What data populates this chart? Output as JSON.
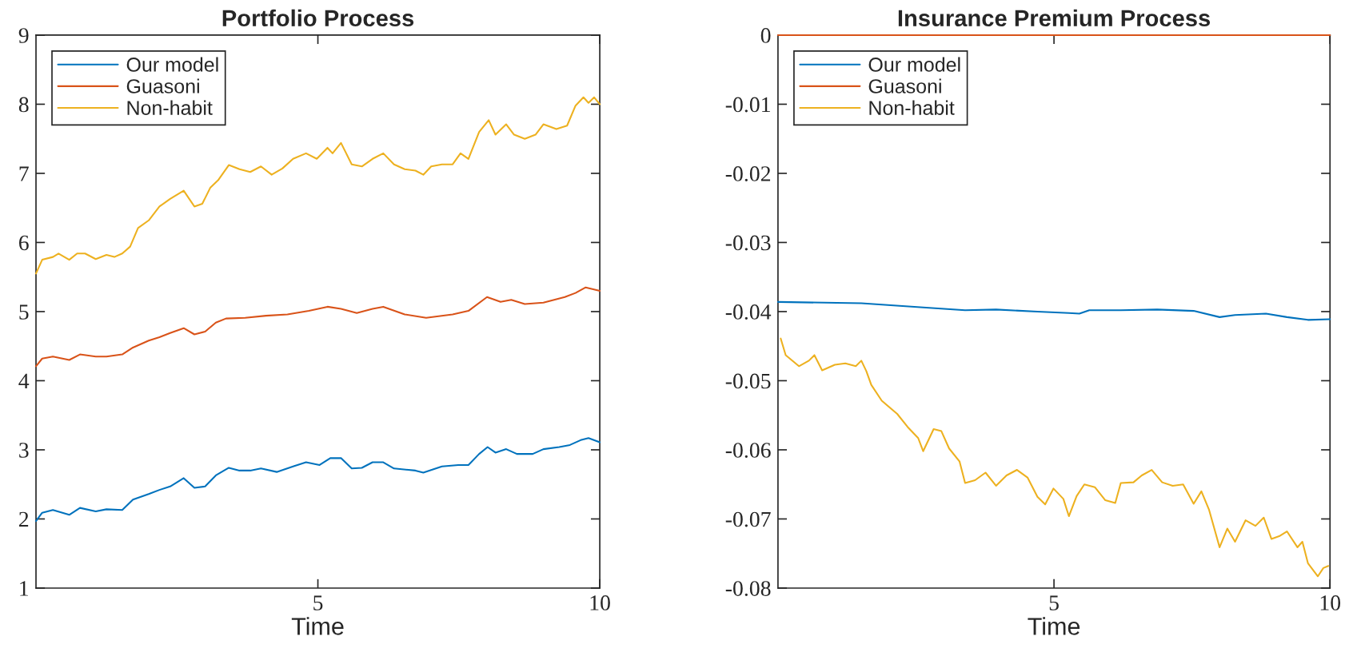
{
  "chart_data": [
    {
      "type": "line",
      "title": "Portfolio Process",
      "xlabel": "Time",
      "xlim": [
        0,
        10
      ],
      "xticks": [
        5,
        10
      ],
      "ylim": [
        1,
        9
      ],
      "yticks": [
        1,
        2,
        3,
        4,
        5,
        6,
        7,
        8,
        9
      ],
      "legend": "top left",
      "series": [
        {
          "name": "Our model",
          "color": "#0072bd",
          "x": [
            0,
            0.11,
            0.3,
            0.59,
            0.78,
            1.06,
            1.25,
            1.53,
            1.72,
            2.0,
            2.19,
            2.38,
            2.62,
            2.81,
            3.0,
            3.19,
            3.42,
            3.61,
            3.8,
            3.99,
            4.27,
            4.56,
            4.79,
            5.03,
            5.22,
            5.41,
            5.6,
            5.78,
            5.97,
            6.16,
            6.35,
            6.73,
            6.87,
            7.2,
            7.49,
            7.67,
            7.86,
            8.01,
            8.15,
            8.34,
            8.53,
            8.81,
            9.0,
            9.28,
            9.47,
            9.66,
            9.8,
            10
          ],
          "values": [
            1.97,
            2.09,
            2.13,
            2.06,
            2.16,
            2.11,
            2.14,
            2.13,
            2.28,
            2.36,
            2.42,
            2.47,
            2.59,
            2.45,
            2.47,
            2.63,
            2.74,
            2.7,
            2.7,
            2.73,
            2.68,
            2.76,
            2.82,
            2.78,
            2.88,
            2.88,
            2.73,
            2.74,
            2.82,
            2.82,
            2.73,
            2.7,
            2.67,
            2.76,
            2.78,
            2.78,
            2.94,
            3.04,
            2.96,
            3.01,
            2.94,
            2.94,
            3.01,
            3.04,
            3.07,
            3.14,
            3.17,
            3.11
          ]
        },
        {
          "name": "Guasoni",
          "color": "#d95319",
          "x": [
            0,
            0.11,
            0.3,
            0.59,
            0.78,
            1.06,
            1.25,
            1.53,
            1.72,
            2.0,
            2.19,
            2.38,
            2.62,
            2.81,
            3.0,
            3.19,
            3.37,
            3.71,
            4.08,
            4.46,
            4.84,
            5.17,
            5.41,
            5.69,
            5.97,
            6.16,
            6.54,
            6.92,
            7.39,
            7.67,
            8.0,
            8.24,
            8.43,
            8.67,
            9.0,
            9.38,
            9.57,
            9.75,
            10
          ],
          "values": [
            4.21,
            4.32,
            4.35,
            4.3,
            4.38,
            4.35,
            4.35,
            4.38,
            4.48,
            4.58,
            4.63,
            4.69,
            4.76,
            4.67,
            4.71,
            4.84,
            4.9,
            4.91,
            4.94,
            4.96,
            5.01,
            5.07,
            5.04,
            4.98,
            5.04,
            5.07,
            4.96,
            4.91,
            4.96,
            5.01,
            5.21,
            5.14,
            5.17,
            5.11,
            5.13,
            5.21,
            5.27,
            5.35,
            5.3
          ]
        },
        {
          "name": "Non-habit",
          "color": "#edb120",
          "x": [
            0,
            0.11,
            0.3,
            0.4,
            0.59,
            0.73,
            0.87,
            1.06,
            1.25,
            1.39,
            1.53,
            1.67,
            1.81,
            2.0,
            2.19,
            2.38,
            2.62,
            2.81,
            2.95,
            3.09,
            3.23,
            3.42,
            3.61,
            3.8,
            3.99,
            4.18,
            4.37,
            4.56,
            4.79,
            4.98,
            5.17,
            5.26,
            5.41,
            5.6,
            5.78,
            5.97,
            6.16,
            6.35,
            6.54,
            6.73,
            6.87,
            7.01,
            7.2,
            7.39,
            7.53,
            7.67,
            7.86,
            8.03,
            8.15,
            8.34,
            8.48,
            8.67,
            8.86,
            9.0,
            9.23,
            9.42,
            9.57,
            9.71,
            9.8,
            9.9,
            10
          ],
          "values": [
            5.55,
            5.75,
            5.79,
            5.84,
            5.75,
            5.84,
            5.84,
            5.76,
            5.82,
            5.79,
            5.84,
            5.94,
            6.21,
            6.32,
            6.52,
            6.63,
            6.75,
            6.52,
            6.56,
            6.79,
            6.9,
            7.12,
            7.06,
            7.02,
            7.1,
            6.98,
            7.07,
            7.21,
            7.29,
            7.21,
            7.37,
            7.29,
            7.44,
            7.13,
            7.1,
            7.21,
            7.29,
            7.13,
            7.06,
            7.04,
            6.98,
            7.1,
            7.13,
            7.13,
            7.29,
            7.21,
            7.6,
            7.77,
            7.56,
            7.71,
            7.56,
            7.5,
            7.56,
            7.71,
            7.64,
            7.69,
            7.98,
            8.1,
            8.02,
            8.1,
            8.0
          ]
        }
      ]
    },
    {
      "type": "line",
      "title": "Insurance Premium Process",
      "xlabel": "Time",
      "xlim": [
        0,
        10
      ],
      "xticks": [
        5,
        10
      ],
      "ylim": [
        -0.08,
        0
      ],
      "yticks": [
        -0.08,
        -0.07,
        -0.06,
        -0.05,
        -0.04,
        -0.03,
        -0.02,
        -0.01,
        0
      ],
      "legend": "top left",
      "series": [
        {
          "name": "Our model",
          "color": "#0072bd",
          "x": [
            0,
            1.51,
            2.63,
            3.39,
            3.95,
            4.7,
            5.27,
            5.46,
            5.64,
            6.21,
            6.87,
            7.53,
            8.0,
            8.28,
            8.84,
            9.22,
            9.6,
            10
          ],
          "values": [
            -0.0386,
            -0.0388,
            -0.0394,
            -0.0398,
            -0.0397,
            -0.04,
            -0.0402,
            -0.0403,
            -0.0398,
            -0.0398,
            -0.0397,
            -0.0399,
            -0.0408,
            -0.0405,
            -0.0403,
            -0.0408,
            -0.0412,
            -0.0411
          ]
        },
        {
          "name": "Guasoni",
          "color": "#d95319",
          "x": [
            0,
            10
          ],
          "values": [
            0,
            0
          ]
        },
        {
          "name": "Non-habit",
          "color": "#edb120",
          "x": [
            0.05,
            0.14,
            0.38,
            0.56,
            0.66,
            0.8,
            1.03,
            1.22,
            1.41,
            1.51,
            1.6,
            1.69,
            1.88,
            2.16,
            2.35,
            2.54,
            2.63,
            2.82,
            2.96,
            3.1,
            3.29,
            3.39,
            3.57,
            3.76,
            3.95,
            4.14,
            4.33,
            4.52,
            4.7,
            4.84,
            4.99,
            5.17,
            5.27,
            5.41,
            5.55,
            5.74,
            5.93,
            6.11,
            6.21,
            6.44,
            6.59,
            6.77,
            6.96,
            7.15,
            7.34,
            7.53,
            7.67,
            7.81,
            8.0,
            8.14,
            8.28,
            8.47,
            8.65,
            8.8,
            8.94,
            9.08,
            9.22,
            9.41,
            9.5,
            9.6,
            9.78,
            9.88,
            9.97
          ],
          "values": [
            -0.0439,
            -0.0463,
            -0.0479,
            -0.0471,
            -0.0463,
            -0.0485,
            -0.0477,
            -0.0475,
            -0.0479,
            -0.0471,
            -0.0486,
            -0.0506,
            -0.0529,
            -0.0548,
            -0.0567,
            -0.0583,
            -0.0602,
            -0.057,
            -0.0573,
            -0.0598,
            -0.0617,
            -0.0648,
            -0.0644,
            -0.0633,
            -0.0652,
            -0.0637,
            -0.0629,
            -0.064,
            -0.0668,
            -0.0679,
            -0.0656,
            -0.0671,
            -0.0696,
            -0.0667,
            -0.065,
            -0.0654,
            -0.0673,
            -0.0677,
            -0.0648,
            -0.0647,
            -0.0637,
            -0.0629,
            -0.0647,
            -0.0652,
            -0.065,
            -0.0678,
            -0.066,
            -0.0687,
            -0.0741,
            -0.0714,
            -0.0733,
            -0.0702,
            -0.071,
            -0.0698,
            -0.0729,
            -0.0725,
            -0.0718,
            -0.0741,
            -0.0733,
            -0.0764,
            -0.0783,
            -0.0771,
            -0.0768
          ]
        }
      ]
    }
  ]
}
